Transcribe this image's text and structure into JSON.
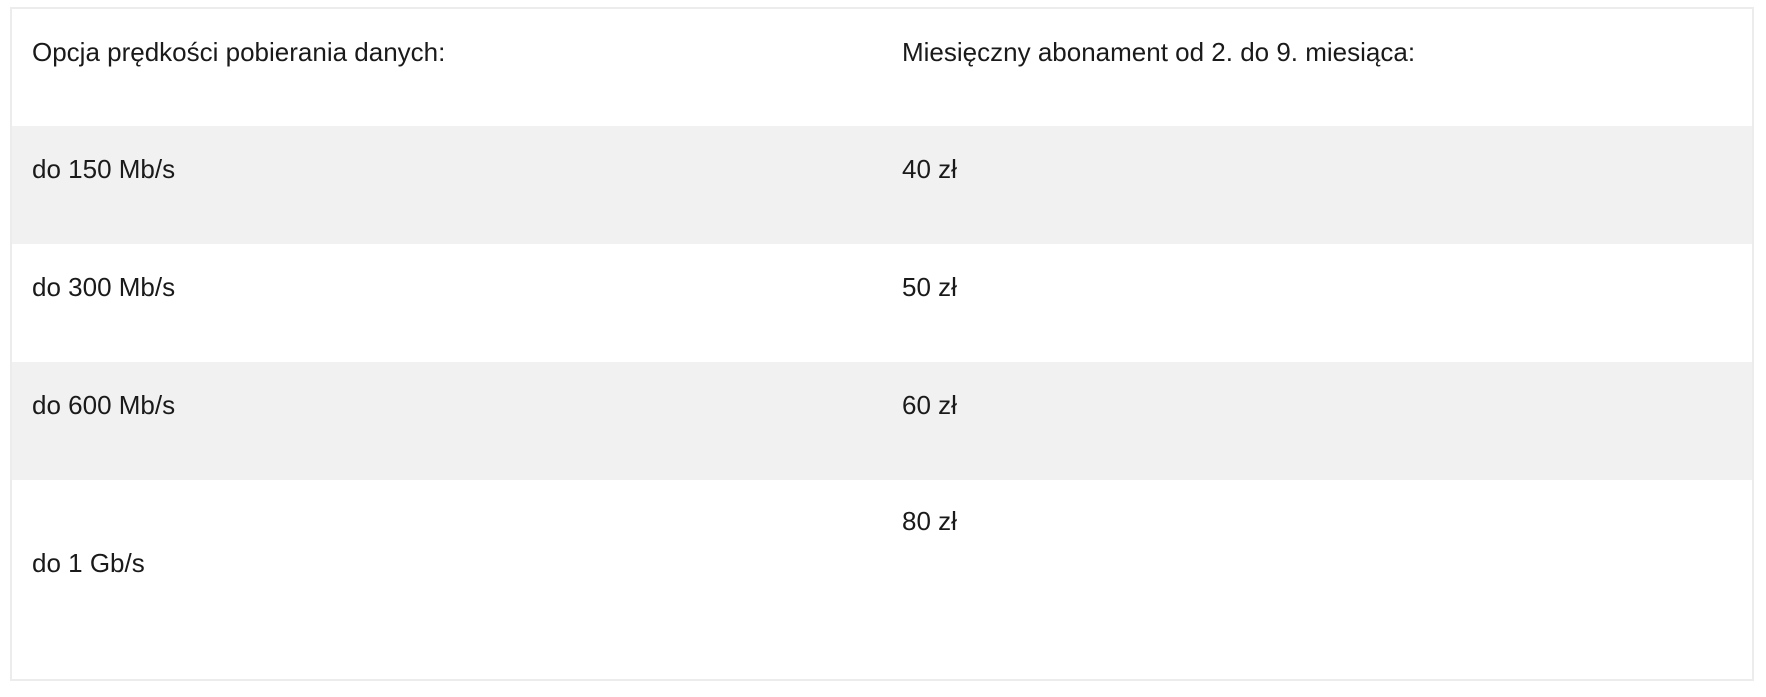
{
  "table": {
    "headers": [
      "Opcja prędkości pobierania danych:",
      "Miesięczny abonament od 2. do 9. miesiąca:"
    ],
    "rows": [
      {
        "speed": "do 150 Mb/s",
        "price": "40 zł"
      },
      {
        "speed": "do 300 Mb/s",
        "price": "50 zł"
      },
      {
        "speed": "do 600 Mb/s",
        "price": "60 zł"
      },
      {
        "speed": "do 1 Gb/s",
        "price": "80 zł"
      }
    ]
  },
  "colors": {
    "stripe": "#f1f1f1",
    "border": "#ececec",
    "text": "#1a1a1a"
  }
}
